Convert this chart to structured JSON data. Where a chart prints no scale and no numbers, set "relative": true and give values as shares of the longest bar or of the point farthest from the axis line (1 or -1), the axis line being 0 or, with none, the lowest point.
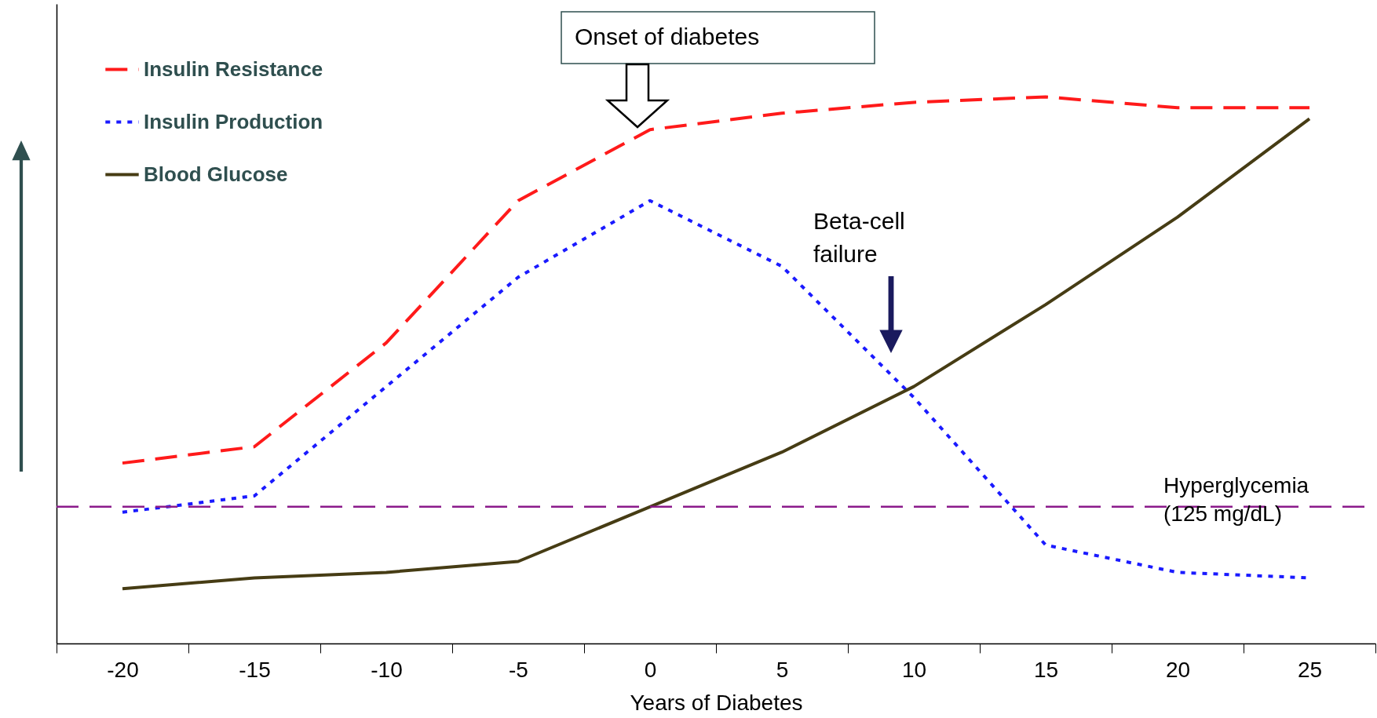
{
  "chart_data": {
    "type": "line",
    "relative": true,
    "xlabel": "Years of Diabetes",
    "categories": [
      "-20",
      "-15",
      "-10",
      "-5",
      "0",
      "5",
      "10",
      "15",
      "20",
      "25"
    ],
    "series": [
      {
        "name": "Insulin Resistance",
        "color": "#ff1a1a",
        "line_style": "dashed",
        "values": [
          0.33,
          0.36,
          0.55,
          0.81,
          0.94,
          0.97,
          0.99,
          1.0,
          0.98,
          0.98
        ]
      },
      {
        "name": "Insulin Production",
        "color": "#1a1aff",
        "line_style": "dotted",
        "values": [
          0.24,
          0.27,
          0.47,
          0.67,
          0.81,
          0.69,
          0.45,
          0.18,
          0.13,
          0.12
        ]
      },
      {
        "name": "Blood Glucose",
        "color": "#463c14",
        "line_style": "solid",
        "values": [
          0.1,
          0.12,
          0.13,
          0.15,
          0.25,
          0.35,
          0.47,
          0.62,
          0.78,
          0.96
        ]
      }
    ],
    "ref_lines": [
      {
        "axis": "y",
        "value": 0.25,
        "label": "Hyperglycemia\n(125 mg/dL)",
        "color": "#8b1a8b",
        "line_style": "dashed"
      }
    ],
    "annotations": [
      "Onset of diabetes",
      "Beta-cell\nfailure"
    ],
    "legend": "top left",
    "grid": false,
    "marker": "none"
  }
}
